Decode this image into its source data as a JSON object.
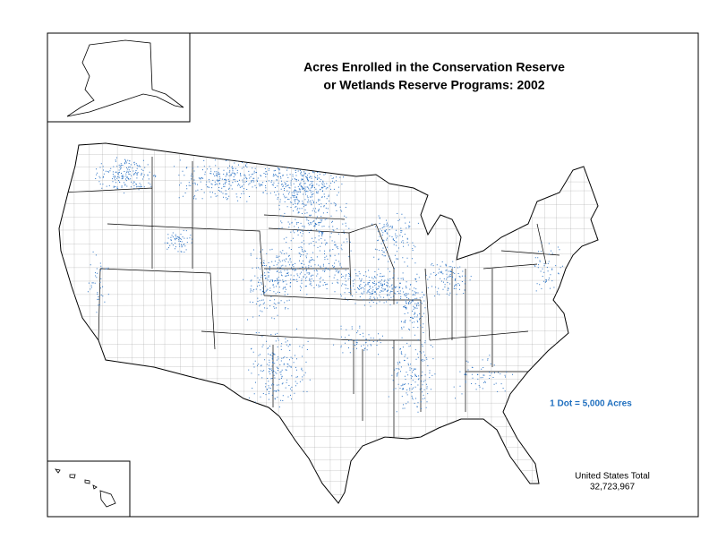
{
  "title": [
    "Acres Enrolled in the Conservation Reserve",
    "or Wetlands Reserve Programs:  2002"
  ],
  "legend": "1 Dot = 5,000 Acres",
  "total": {
    "label": "United States Total",
    "value": "32,723,967"
  }
}
